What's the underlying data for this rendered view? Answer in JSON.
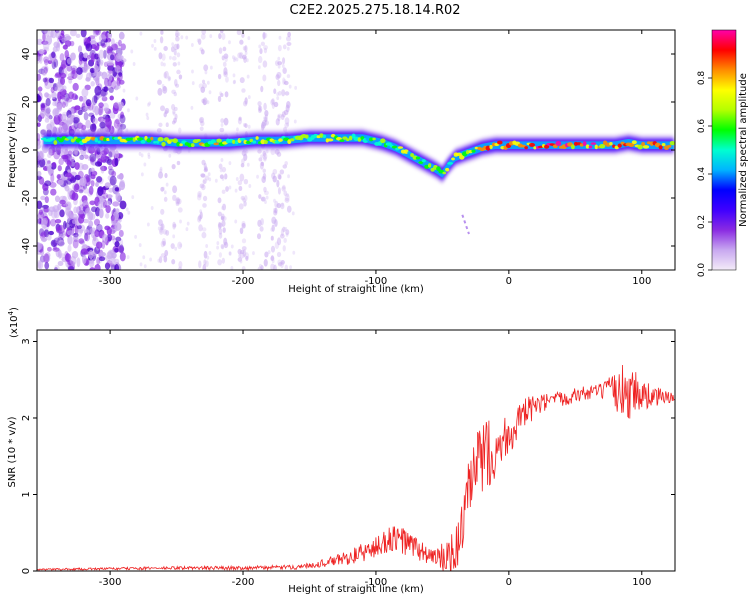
{
  "title": "C2E2.2025.275.18.14.R02",
  "chart_data": [
    {
      "type": "heatmap",
      "xlabel": "Height of straight line (km)",
      "ylabel": "Frequency (Hz)",
      "xlim": [
        -355,
        125
      ],
      "ylim": [
        -50,
        50
      ],
      "x_ticks": [
        -300,
        -200,
        -100,
        0,
        100
      ],
      "y_ticks": [
        -40,
        -20,
        0,
        20,
        40
      ],
      "colorbar": {
        "label": "Normalized spectral amplitude",
        "range": [
          0,
          1
        ],
        "ticks": [
          0.0,
          0.2,
          0.4,
          0.6,
          0.8
        ],
        "colors": [
          "#f4ecf8",
          "#c8a8f0",
          "#8a2be2",
          "#3f00ff",
          "#0000ff",
          "#00b4ff",
          "#00ffd0",
          "#00ff00",
          "#b4ff00",
          "#ffff00",
          "#ff8c00",
          "#ff0000",
          "#ff00aa"
        ]
      },
      "trace": {
        "x": [
          -350,
          -330,
          -310,
          -290,
          -270,
          -250,
          -230,
          -210,
          -190,
          -170,
          -150,
          -130,
          -110,
          -95,
          -85,
          -75,
          -65,
          -55,
          -50,
          -45,
          -40,
          -30,
          -20,
          -10,
          0,
          20,
          40,
          60,
          80,
          90,
          100,
          110,
          125
        ],
        "freq": [
          4,
          4,
          4,
          4,
          4,
          3,
          3,
          3,
          4,
          4,
          5,
          5,
          5,
          3,
          1,
          -2,
          -5,
          -8,
          -10,
          -6,
          -3,
          -1,
          1,
          2,
          2,
          2,
          2,
          2,
          2,
          3,
          2,
          2,
          2
        ]
      },
      "scatter_band": {
        "x_range": [
          -355,
          -290
        ],
        "freq_range": [
          -50,
          50
        ]
      },
      "faint_streaks_x": [
        -260,
        -250,
        -230,
        -215,
        -200,
        -185,
        -175,
        -168
      ],
      "artifact": {
        "x": [
          -35,
          -30
        ],
        "freq": [
          -27,
          -35
        ]
      }
    },
    {
      "type": "line",
      "xlabel": "Height of straight line (km)",
      "ylabel": "SNR (10 * v/v)",
      "y_multiplier": "(x10",
      "y_multiplier_exp": "4",
      "xlim": [
        -355,
        125
      ],
      "ylim": [
        0,
        3.15
      ],
      "x_ticks": [
        -300,
        -200,
        -100,
        0,
        100
      ],
      "y_ticks": [
        0,
        1,
        2,
        3
      ],
      "color": "#ee2222",
      "series": {
        "name": "SNR",
        "x": [
          -355,
          -300,
          -250,
          -200,
          -160,
          -140,
          -120,
          -100,
          -90,
          -80,
          -70,
          -60,
          -50,
          -40,
          -35,
          -30,
          -25,
          -20,
          -15,
          -10,
          -5,
          0,
          5,
          10,
          15,
          20,
          30,
          40,
          50,
          60,
          70,
          80,
          85,
          90,
          95,
          100,
          110,
          125
        ],
        "values": [
          0.02,
          0.03,
          0.04,
          0.04,
          0.05,
          0.1,
          0.18,
          0.3,
          0.42,
          0.4,
          0.3,
          0.2,
          0.15,
          0.25,
          0.6,
          1.0,
          1.3,
          1.5,
          1.55,
          1.6,
          1.7,
          1.8,
          1.9,
          2.0,
          2.1,
          2.15,
          2.2,
          2.25,
          2.3,
          2.33,
          2.35,
          2.35,
          2.35,
          2.4,
          2.35,
          2.3,
          2.28,
          2.26
        ]
      },
      "noise": {
        "x": [
          -355,
          -150,
          -120,
          -100,
          -80,
          -60,
          -40,
          -30,
          -20,
          -10,
          0,
          20,
          40,
          70,
          80,
          90,
          100,
          125
        ],
        "amplitude": [
          0.01,
          0.03,
          0.1,
          0.15,
          0.2,
          0.12,
          0.3,
          0.45,
          0.5,
          0.4,
          0.3,
          0.15,
          0.1,
          0.1,
          0.25,
          0.45,
          0.2,
          0.05
        ]
      }
    }
  ]
}
